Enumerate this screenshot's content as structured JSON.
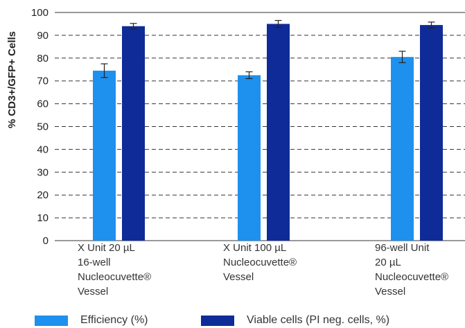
{
  "chart_data": {
    "type": "bar",
    "ylabel": "% CD3+/GFP+ Cells",
    "ylim": [
      0,
      100
    ],
    "yticks": [
      0,
      10,
      20,
      30,
      40,
      50,
      60,
      70,
      80,
      90,
      100
    ],
    "grid": true,
    "legend_position": "bottom",
    "categories": [
      [
        "X Unit 20 µL",
        "16-well",
        "Nucleocuvette®",
        "Vessel"
      ],
      [
        "X Unit 100 µL",
        "Nucleocuvette®",
        "Vessel"
      ],
      [
        "96-well Unit",
        "20 µL",
        "Nucleocuvette®",
        "Vessel"
      ]
    ],
    "series": [
      {
        "name": "Efficiency (%)",
        "color": "#1e90ee",
        "values": [
          74.5,
          72.5,
          80.5
        ],
        "errors": [
          3,
          1.5,
          2.5
        ]
      },
      {
        "name": "Viable cells (PI neg. cells, %)",
        "color": "#0f2b98",
        "values": [
          94,
          95,
          94.5
        ],
        "errors": [
          1.2,
          1.5,
          1.3
        ]
      }
    ]
  }
}
